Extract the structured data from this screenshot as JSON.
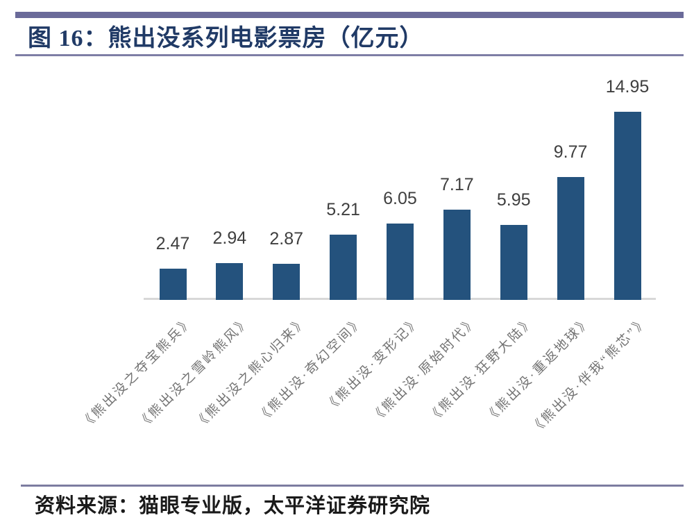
{
  "header": {
    "title": "图 16：熊出没系列电影票房（亿元）"
  },
  "footer": {
    "source": "资料来源：猫眼专业版，太平洋证券研究院"
  },
  "colors": {
    "bar": "#24527D",
    "title_text": "#203A66",
    "top_rule": "#6A6A99",
    "title_rule": "#7E7EA5",
    "footer_rule": "#7C7CA0",
    "axis_line": "#D8D8D8",
    "value_label": "#3F3F3F",
    "x_label": "#737373",
    "source_text": "#1A1A1A"
  },
  "chart_data": {
    "type": "bar",
    "title": "熊出没系列电影票房（亿元）",
    "unit": "亿元",
    "categories": [
      "《熊出没之夺宝熊兵》",
      "《熊出没之雪岭熊风》",
      "《熊出没之熊心归来》",
      "《熊出没·奇幻空间》",
      "《熊出没·变形记》",
      "《熊出没·原始时代》",
      "《熊出没·狂野大陆》",
      "《熊出没·重返地球》",
      "《熊出没·伴我“熊芯”》"
    ],
    "values": [
      2.47,
      2.94,
      2.87,
      5.21,
      6.05,
      7.17,
      5.95,
      9.77,
      14.95
    ],
    "ylim": [
      0,
      15
    ],
    "grid": false,
    "legend": false,
    "data_labels_shown": true,
    "bar_color": "#24527D",
    "xlabel": "",
    "ylabel": ""
  }
}
